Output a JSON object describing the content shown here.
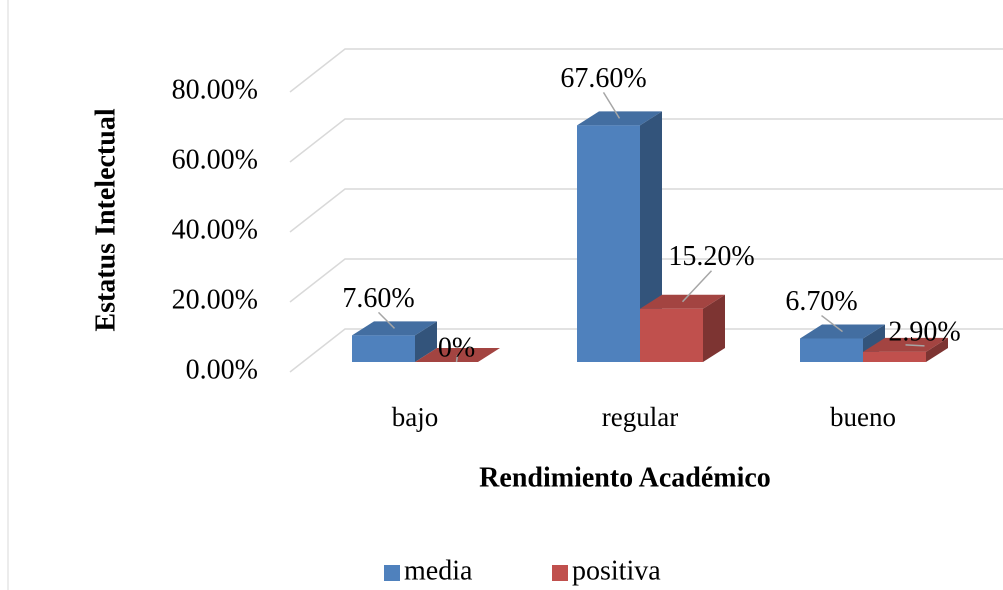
{
  "chart_data": {
    "type": "bar3d",
    "x_label": "Rendimiento Académico",
    "y_label": "Estatus Intelectual",
    "categories": [
      "bajo",
      "regular",
      "bueno"
    ],
    "series": [
      {
        "name": "media",
        "color": "#4f81bd",
        "values": [
          7.6,
          67.6,
          6.7
        ],
        "value_labels": [
          "7.60%",
          "67.60%",
          "6.70%"
        ]
      },
      {
        "name": "positiva",
        "color": "#c0504d",
        "values": [
          0,
          15.2,
          2.9
        ],
        "value_labels": [
          "0%",
          "15.20%",
          "2.90%"
        ]
      }
    ],
    "ylim": [
      0,
      80
    ],
    "yticks": [
      {
        "value": 0,
        "label": "0.00%"
      },
      {
        "value": 20,
        "label": "20.00%"
      },
      {
        "value": 40,
        "label": "40.00%"
      },
      {
        "value": 60,
        "label": "60.00%"
      },
      {
        "value": 80,
        "label": "80.00%"
      }
    ],
    "grid": true,
    "legend": "bottom"
  }
}
